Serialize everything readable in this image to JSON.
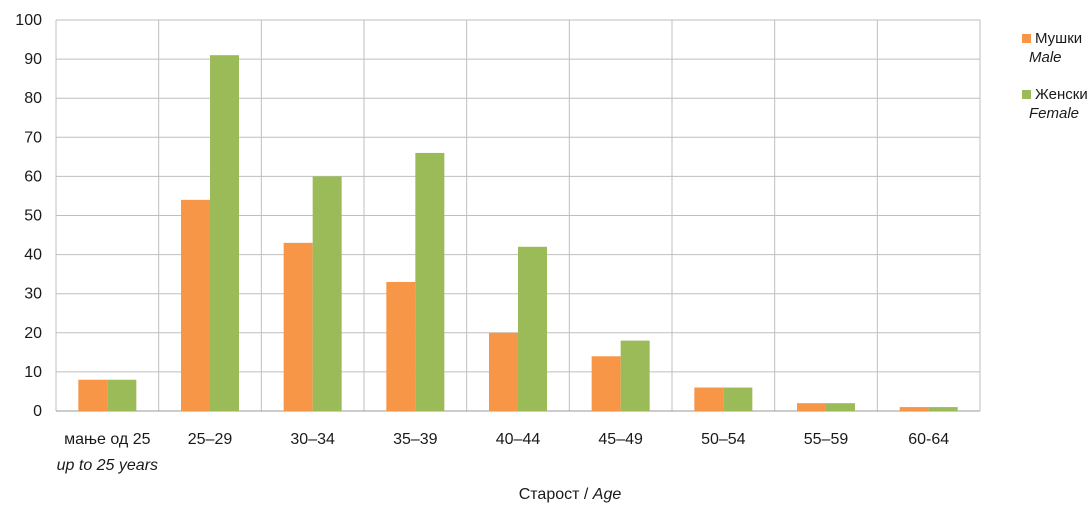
{
  "chart_data": {
    "type": "bar",
    "categories": [
      "мање од 25",
      "25–29",
      "30–34",
      "35–39",
      "40–44",
      "45–49",
      "50–54",
      "55–59",
      "60-64"
    ],
    "category_sublabels": [
      "up to 25 years",
      "",
      "",
      "",
      "",
      "",
      "",
      "",
      ""
    ],
    "series": [
      {
        "name": "Мушки",
        "name_en": "Male",
        "color": "#f79646",
        "values": [
          8,
          54,
          43,
          33,
          20,
          14,
          6,
          2,
          1
        ]
      },
      {
        "name": "Женски",
        "name_en": "Female",
        "color": "#9bbb59",
        "values": [
          8,
          91,
          60,
          66,
          42,
          18,
          6,
          2,
          1
        ]
      }
    ],
    "ylim": [
      0,
      100
    ],
    "yticks": [
      0,
      10,
      20,
      30,
      40,
      50,
      60,
      70,
      80,
      90,
      100
    ],
    "xlabel": "Старост",
    "xlabel_en": "Age",
    "xlabel_separator": " / ",
    "grid": true,
    "legend_position": "right"
  }
}
